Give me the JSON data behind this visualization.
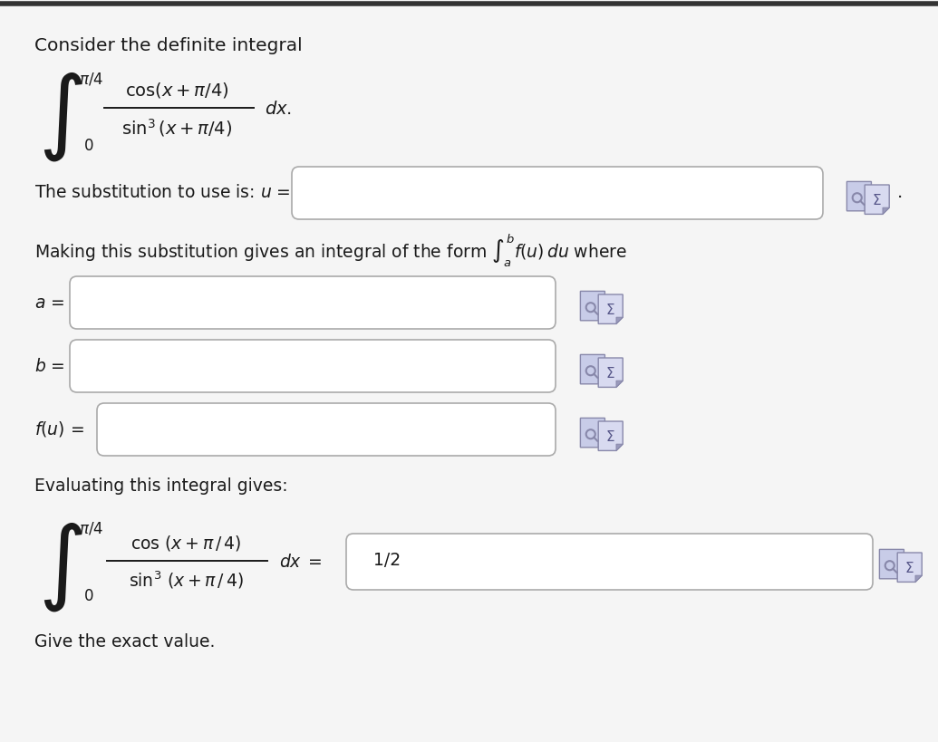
{
  "bg_color": "#f5f5f5",
  "text_color": "#1a1a1a",
  "input_box_color": "#ffffff",
  "input_box_border": "#aaaaaa",
  "title": "Consider the definite integral",
  "final_answer": "1/2",
  "give_text": "Give the exact value.",
  "outer_border_color": "#333333",
  "icon_bg1": "#c8cce8",
  "icon_bg2": "#d8daf0",
  "icon_border": "#8888aa",
  "icon_fold": "#9999bb"
}
